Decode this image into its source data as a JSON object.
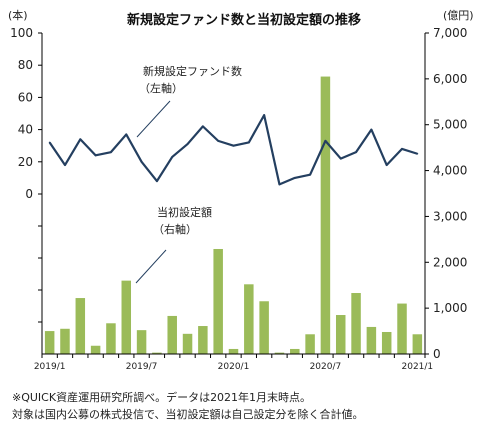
{
  "chart_data": {
    "type": "bar+line",
    "title": "新規設定ファンド数と当初設定額の推移",
    "left_axis": {
      "unit": "(本)",
      "ticks": [
        0,
        20,
        40,
        60,
        80,
        100
      ],
      "ylim": [
        0,
        100
      ]
    },
    "right_axis": {
      "unit": "(億円)",
      "ticks": [
        "0",
        "1,000",
        "2,000",
        "3,000",
        "4,000",
        "5,000",
        "6,000",
        "7,000"
      ],
      "ylim": [
        0,
        7000
      ]
    },
    "x_labels": [
      {
        "i": 0,
        "text": "2019/1"
      },
      {
        "i": 6,
        "text": "2019/7"
      },
      {
        "i": 12,
        "text": "2020/1"
      },
      {
        "i": 18,
        "text": "2020/7"
      },
      {
        "i": 24,
        "text": "2021/1"
      }
    ],
    "months": [
      "2019/1",
      "2019/2",
      "2019/3",
      "2019/4",
      "2019/5",
      "2019/6",
      "2019/7",
      "2019/8",
      "2019/9",
      "2019/10",
      "2019/11",
      "2019/12",
      "2020/1",
      "2020/2",
      "2020/3",
      "2020/4",
      "2020/5",
      "2020/6",
      "2020/7",
      "2020/8",
      "2020/9",
      "2020/10",
      "2020/11",
      "2020/12",
      "2021/1"
    ],
    "series": [
      {
        "name": "新規設定ファンド数",
        "label_line1": "新規設定ファンド数",
        "label_line2": "（左軸）",
        "type": "line",
        "axis": "left",
        "color": "#243f60",
        "values": [
          32,
          18,
          34,
          24,
          26,
          37,
          20,
          8,
          23,
          31,
          42,
          33,
          30,
          32,
          49,
          6,
          10,
          12,
          33,
          22,
          26,
          40,
          18,
          28,
          25
        ]
      },
      {
        "name": "当初設定額",
        "label_line1": "当初設定額",
        "label_line2": "（右軸）",
        "type": "bar",
        "axis": "right",
        "color": "#9bbb59",
        "values": [
          500,
          550,
          1220,
          180,
          670,
          1600,
          520,
          30,
          830,
          440,
          610,
          2290,
          110,
          1520,
          1150,
          30,
          110,
          430,
          6050,
          850,
          1330,
          590,
          480,
          1100,
          430
        ]
      }
    ]
  },
  "notes": [
    "※QUICK資産運用研究所調べ。データは2021年1月末時点。",
    "対象は国内公募の株式投信で、当初設定額は自己設定分を除く合計値。"
  ]
}
